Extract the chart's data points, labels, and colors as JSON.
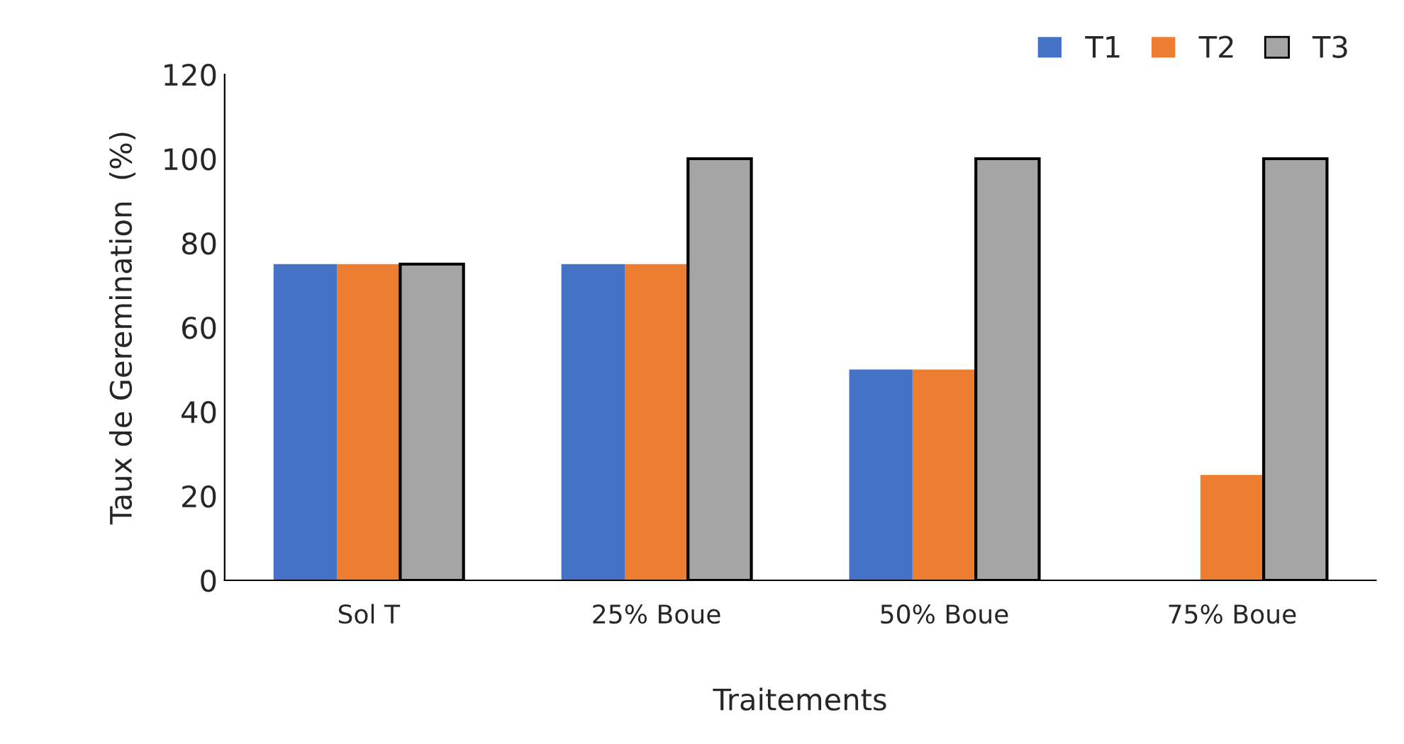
{
  "chart_data": {
    "type": "bar",
    "xlabel": "Traitements",
    "ylabel": "Taux de Geremination  (%)",
    "categories": [
      "Sol T",
      "25% Boue",
      "50% Boue",
      "75% Boue"
    ],
    "series": [
      {
        "name": "T1",
        "color": "#4472c4",
        "values": [
          75,
          75,
          50,
          0
        ]
      },
      {
        "name": "T2",
        "color": "#ed7d31",
        "values": [
          75,
          75,
          50,
          25
        ]
      },
      {
        "name": "T3",
        "color": "#a5a5a5",
        "values": [
          75,
          100,
          100,
          100
        ]
      }
    ],
    "ylim": [
      0,
      120
    ],
    "yticks": [
      0,
      20,
      40,
      60,
      80,
      100,
      120
    ],
    "grid": false,
    "legend": "top right"
  }
}
